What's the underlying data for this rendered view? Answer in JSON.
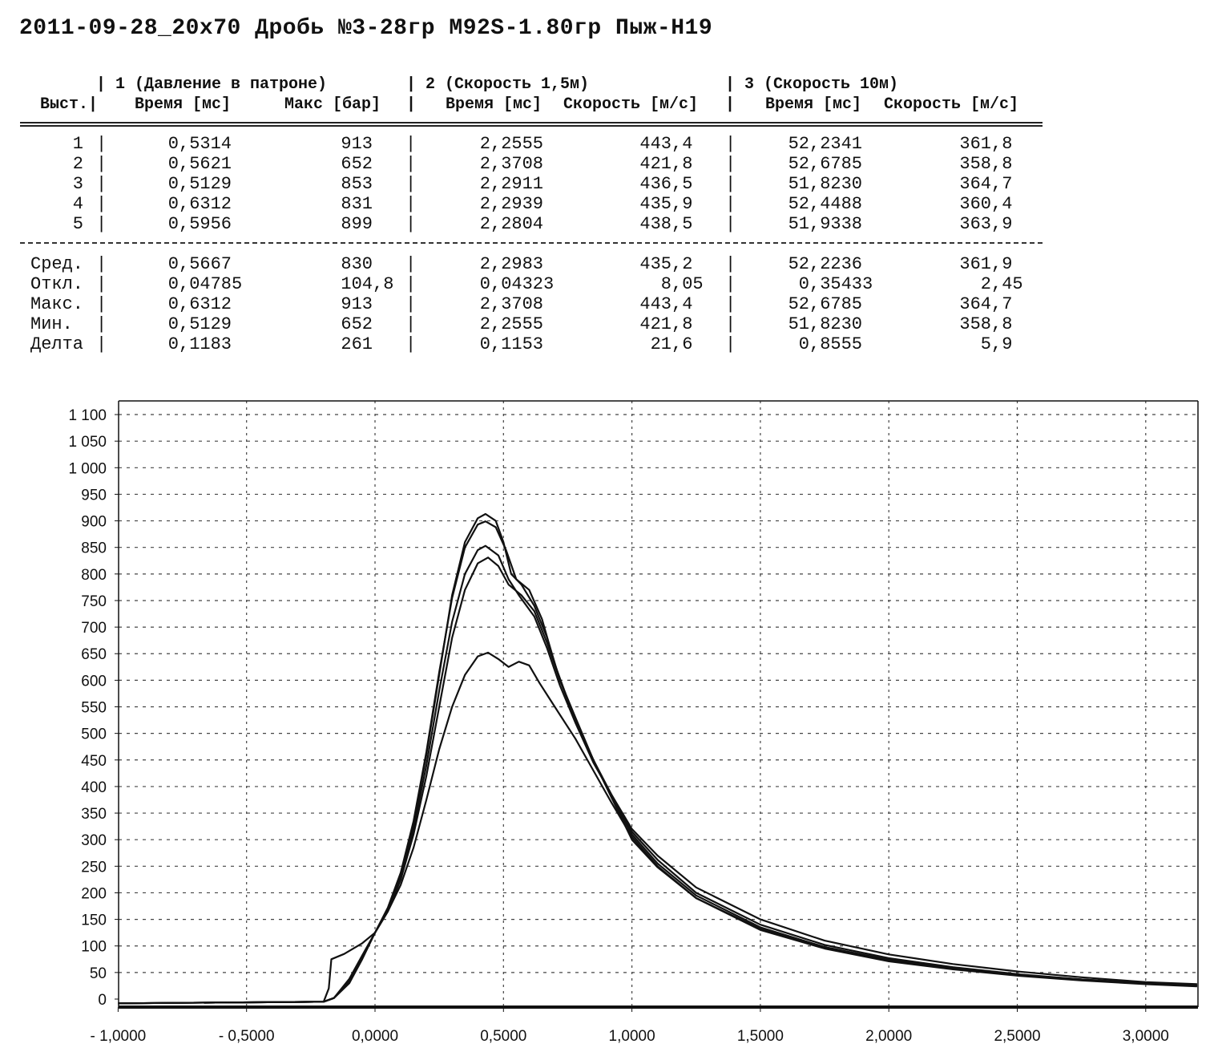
{
  "title": "2011-09-28_20x70 Дробь №3-28гр M92S-1.80гр Пыж-H19",
  "table": {
    "groups": [
      "| 1 (Давление в патроне)",
      "| 2 (Скорость 1,5м)",
      "| 3 (Скорость 10м)"
    ],
    "row_header": "Выст.|",
    "columns": [
      "Время [мс]",
      "Макс [бар]",
      "Время [мс]",
      "Скорость [м/с]",
      "Время [мс]",
      "Скорость [м/с]"
    ],
    "separator": "|",
    "shots": [
      {
        "label": "1",
        "values": [
          "0,5314",
          "913",
          "2,2555",
          "443,4",
          "52,2341",
          "361,8"
        ]
      },
      {
        "label": "2",
        "values": [
          "0,5621",
          "652",
          "2,3708",
          "421,8",
          "52,6785",
          "358,8"
        ]
      },
      {
        "label": "3",
        "values": [
          "0,5129",
          "853",
          "2,2911",
          "436,5",
          "51,8230",
          "364,7"
        ]
      },
      {
        "label": "4",
        "values": [
          "0,6312",
          "831",
          "2,2939",
          "435,9",
          "52,4488",
          "360,4"
        ]
      },
      {
        "label": "5",
        "values": [
          "0,5956",
          "899",
          "2,2804",
          "438,5",
          "51,9338",
          "363,9"
        ]
      }
    ],
    "stats": [
      {
        "label": "Сред.",
        "values": [
          "0,5667",
          "830",
          "2,2983",
          "435,2",
          "52,2236",
          "361,9"
        ]
      },
      {
        "label": "Откл.",
        "values": [
          "0,04785",
          "104,8",
          "0,04323",
          "8,05",
          "0,35433",
          "2,45"
        ]
      },
      {
        "label": "Макс.",
        "values": [
          "0,6312",
          "913",
          "2,3708",
          "443,4",
          "52,6785",
          "364,7"
        ]
      },
      {
        "label": "Мин.",
        "values": [
          "0,5129",
          "652",
          "2,2555",
          "421,8",
          "51,8230",
          "358,8"
        ]
      },
      {
        "label": "Делта",
        "values": [
          "0,1183",
          "261",
          "0,1153",
          "21,6",
          "0,8555",
          "5,9"
        ]
      }
    ]
  },
  "chart_data": {
    "type": "line",
    "title": "",
    "xlabel": "",
    "ylabel": "",
    "xlim": [
      -1.0,
      3.2
    ],
    "ylim": [
      -20,
      1130
    ],
    "grid": true,
    "x_ticks": [
      -1.0,
      -0.5,
      0.0,
      0.5,
      1.0,
      1.5,
      2.0,
      2.5,
      3.0
    ],
    "x_tick_labels": [
      "- 1,0000",
      "- 0,5000",
      "0,0000",
      "0,5000",
      "1,0000",
      "1,5000",
      "2,0000",
      "2,5000",
      "3,0000"
    ],
    "y_ticks": [
      0,
      50,
      100,
      150,
      200,
      250,
      300,
      350,
      400,
      450,
      500,
      550,
      600,
      650,
      700,
      750,
      800,
      850,
      900,
      950,
      1000,
      1050,
      1100
    ],
    "y_tick_labels": [
      "0",
      "50",
      "100",
      "150",
      "200",
      "250",
      "300",
      "350",
      "400",
      "450",
      "500",
      "550",
      "600",
      "650",
      "700",
      "750",
      "800",
      "850",
      "900",
      "950",
      "1 000",
      "1 050",
      "1 100"
    ],
    "line_color": "#111111",
    "series": [
      {
        "name": "1",
        "points": [
          [
            -1,
            -8
          ],
          [
            -0.2,
            -5
          ],
          [
            -0.16,
            2
          ],
          [
            -0.1,
            35
          ],
          [
            -0.05,
            80
          ],
          [
            0,
            125
          ],
          [
            0.05,
            170
          ],
          [
            0.1,
            235
          ],
          [
            0.15,
            330
          ],
          [
            0.2,
            460
          ],
          [
            0.25,
            610
          ],
          [
            0.3,
            760
          ],
          [
            0.35,
            860
          ],
          [
            0.4,
            905
          ],
          [
            0.43,
            913
          ],
          [
            0.47,
            900
          ],
          [
            0.5,
            860
          ],
          [
            0.53,
            800
          ],
          [
            0.57,
            780
          ],
          [
            0.62,
            740
          ],
          [
            0.67,
            680
          ],
          [
            0.72,
            600
          ],
          [
            0.78,
            530
          ],
          [
            0.85,
            450
          ],
          [
            0.92,
            380
          ],
          [
            1.0,
            310
          ],
          [
            1.1,
            255
          ],
          [
            1.25,
            195
          ],
          [
            1.5,
            135
          ],
          [
            1.75,
            98
          ],
          [
            2.0,
            74
          ],
          [
            2.25,
            58
          ],
          [
            2.5,
            46
          ],
          [
            2.75,
            37
          ],
          [
            3.0,
            30
          ],
          [
            3.2,
            26
          ]
        ]
      },
      {
        "name": "2",
        "points": [
          [
            -1,
            -8
          ],
          [
            -0.2,
            -5
          ],
          [
            -0.16,
            2
          ],
          [
            -0.1,
            30
          ],
          [
            -0.05,
            75
          ],
          [
            0,
            125
          ],
          [
            0.05,
            165
          ],
          [
            0.1,
            215
          ],
          [
            0.15,
            285
          ],
          [
            0.2,
            375
          ],
          [
            0.25,
            470
          ],
          [
            0.3,
            550
          ],
          [
            0.35,
            610
          ],
          [
            0.4,
            645
          ],
          [
            0.44,
            652
          ],
          [
            0.48,
            640
          ],
          [
            0.52,
            625
          ],
          [
            0.56,
            635
          ],
          [
            0.6,
            628
          ],
          [
            0.64,
            595
          ],
          [
            0.68,
            565
          ],
          [
            0.72,
            535
          ],
          [
            0.78,
            490
          ],
          [
            0.85,
            430
          ],
          [
            0.92,
            370
          ],
          [
            1.0,
            305
          ],
          [
            1.1,
            250
          ],
          [
            1.25,
            190
          ],
          [
            1.5,
            132
          ],
          [
            1.75,
            96
          ],
          [
            2.0,
            72
          ],
          [
            2.25,
            57
          ],
          [
            2.5,
            45
          ],
          [
            2.75,
            36
          ],
          [
            3.0,
            29
          ],
          [
            3.2,
            25
          ]
        ]
      },
      {
        "name": "3",
        "points": [
          [
            -1,
            -8
          ],
          [
            -0.2,
            -5
          ],
          [
            -0.18,
            20
          ],
          [
            -0.17,
            75
          ],
          [
            -0.12,
            85
          ],
          [
            -0.05,
            105
          ],
          [
            0,
            125
          ],
          [
            0.05,
            170
          ],
          [
            0.1,
            230
          ],
          [
            0.15,
            320
          ],
          [
            0.2,
            440
          ],
          [
            0.25,
            580
          ],
          [
            0.3,
            710
          ],
          [
            0.35,
            800
          ],
          [
            0.4,
            845
          ],
          [
            0.43,
            853
          ],
          [
            0.48,
            835
          ],
          [
            0.52,
            790
          ],
          [
            0.56,
            760
          ],
          [
            0.62,
            720
          ],
          [
            0.67,
            660
          ],
          [
            0.72,
            590
          ],
          [
            0.78,
            520
          ],
          [
            0.85,
            445
          ],
          [
            0.92,
            385
          ],
          [
            1.0,
            320
          ],
          [
            1.1,
            270
          ],
          [
            1.25,
            210
          ],
          [
            1.5,
            150
          ],
          [
            1.75,
            110
          ],
          [
            2.0,
            84
          ],
          [
            2.25,
            66
          ],
          [
            2.5,
            52
          ],
          [
            2.75,
            41
          ],
          [
            3.0,
            32
          ],
          [
            3.2,
            28
          ]
        ]
      },
      {
        "name": "4",
        "points": [
          [
            -1,
            -8
          ],
          [
            -0.2,
            -5
          ],
          [
            -0.16,
            2
          ],
          [
            -0.1,
            30
          ],
          [
            -0.05,
            78
          ],
          [
            0,
            125
          ],
          [
            0.05,
            165
          ],
          [
            0.1,
            225
          ],
          [
            0.15,
            310
          ],
          [
            0.2,
            420
          ],
          [
            0.25,
            550
          ],
          [
            0.3,
            680
          ],
          [
            0.35,
            770
          ],
          [
            0.4,
            820
          ],
          [
            0.44,
            831
          ],
          [
            0.48,
            815
          ],
          [
            0.52,
            780
          ],
          [
            0.57,
            760
          ],
          [
            0.62,
            730
          ],
          [
            0.67,
            670
          ],
          [
            0.72,
            600
          ],
          [
            0.78,
            525
          ],
          [
            0.85,
            450
          ],
          [
            0.92,
            385
          ],
          [
            1.0,
            315
          ],
          [
            1.1,
            262
          ],
          [
            1.25,
            200
          ],
          [
            1.5,
            140
          ],
          [
            1.75,
            102
          ],
          [
            2.0,
            77
          ],
          [
            2.25,
            60
          ],
          [
            2.5,
            47
          ],
          [
            2.75,
            37
          ],
          [
            3.0,
            30
          ],
          [
            3.2,
            26
          ]
        ]
      },
      {
        "name": "5",
        "points": [
          [
            -1,
            -8
          ],
          [
            -0.2,
            -5
          ],
          [
            -0.16,
            2
          ],
          [
            -0.1,
            38
          ],
          [
            -0.05,
            82
          ],
          [
            0,
            125
          ],
          [
            0.05,
            172
          ],
          [
            0.1,
            238
          ],
          [
            0.15,
            335
          ],
          [
            0.2,
            465
          ],
          [
            0.25,
            615
          ],
          [
            0.3,
            755
          ],
          [
            0.35,
            850
          ],
          [
            0.4,
            893
          ],
          [
            0.43,
            899
          ],
          [
            0.47,
            888
          ],
          [
            0.51,
            845
          ],
          [
            0.55,
            790
          ],
          [
            0.6,
            770
          ],
          [
            0.65,
            715
          ],
          [
            0.7,
            630
          ],
          [
            0.76,
            550
          ],
          [
            0.83,
            470
          ],
          [
            0.9,
            400
          ],
          [
            1.0,
            300
          ],
          [
            1.1,
            248
          ],
          [
            1.25,
            190
          ],
          [
            1.5,
            130
          ],
          [
            1.75,
            95
          ],
          [
            2.0,
            71
          ],
          [
            2.25,
            56
          ],
          [
            2.5,
            44
          ],
          [
            2.75,
            35
          ],
          [
            3.0,
            28
          ],
          [
            3.2,
            24
          ]
        ]
      }
    ]
  }
}
